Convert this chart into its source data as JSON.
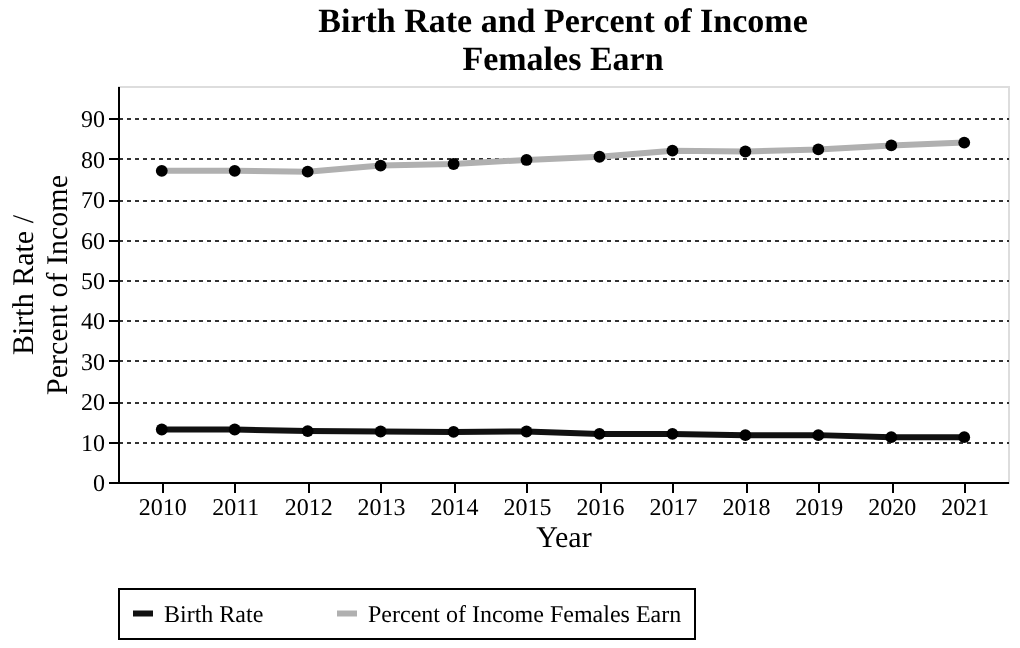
{
  "chart_data": {
    "type": "line",
    "title": "Birth Rate and Percent of Income Females Earn",
    "xlabel": "Year",
    "ylabel": "Birth Rate / Percent of Income",
    "categories": [
      "2010",
      "2011",
      "2012",
      "2013",
      "2014",
      "2015",
      "2016",
      "2017",
      "2018",
      "2019",
      "2020",
      "2021"
    ],
    "series": [
      {
        "name": "Birth Rate",
        "color": "#111111",
        "values": [
          13.0,
          13.0,
          12.6,
          12.5,
          12.4,
          12.5,
          11.9,
          11.9,
          11.6,
          11.6,
          11.1,
          11.1
        ]
      },
      {
        "name": "Percent of Income Females Earn",
        "color": "#b0b0b0",
        "values": [
          77.0,
          77.0,
          76.8,
          78.3,
          78.7,
          79.7,
          80.5,
          82.0,
          81.8,
          82.3,
          83.3,
          84.0
        ]
      }
    ],
    "ylim": [
      0,
      98
    ],
    "yticks": [
      0,
      10,
      20,
      30,
      40,
      50,
      60,
      70,
      80,
      90
    ],
    "grid": "y",
    "legend": "bottom",
    "marker": "circle",
    "line_style": "solid"
  }
}
